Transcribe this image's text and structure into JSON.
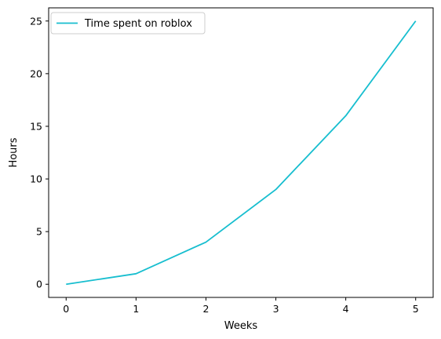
{
  "chart_data": {
    "type": "line",
    "title": "",
    "xlabel": "Weeks",
    "ylabel": "Hours",
    "x": [
      0,
      1,
      2,
      3,
      4,
      5
    ],
    "series": [
      {
        "name": "Time spent on roblox",
        "values": [
          0,
          1,
          4,
          9,
          16,
          25
        ],
        "color": "#17becf"
      }
    ],
    "xlim": [
      -0.25,
      5.25
    ],
    "ylim": [
      -1.25,
      26.25
    ],
    "xticks": [
      0,
      1,
      2,
      3,
      4,
      5
    ],
    "yticks": [
      0,
      5,
      10,
      15,
      20,
      25
    ],
    "grid": false,
    "legend": "top-left"
  }
}
